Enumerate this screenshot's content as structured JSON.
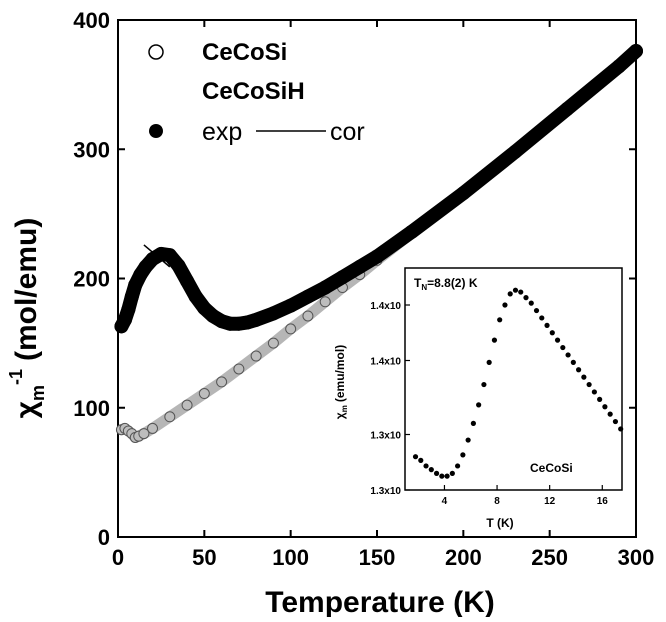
{
  "chart_data": [
    {
      "type": "scatter",
      "title": "",
      "xlabel": "Temperature (K)",
      "ylabel": "χm⁻¹ (mol/emu)",
      "ylabel_parts": {
        "symbol": "χ",
        "subscript": "m",
        "superscript": "-1",
        "unit": "(mol/emu)"
      },
      "xlim": [
        0,
        300
      ],
      "ylim": [
        0,
        400
      ],
      "xticks": [
        0,
        50,
        100,
        150,
        200,
        250,
        300
      ],
      "xtick_labels": [
        "0",
        "50",
        "100",
        "150",
        "200",
        "250",
        "300"
      ],
      "yticks": [
        0,
        100,
        200,
        300,
        400
      ],
      "ytick_labels": [
        "0",
        "100",
        "200",
        "300",
        "400"
      ],
      "grid": false,
      "legend_placement": "top-left",
      "legend": {
        "sample1": "CeCoSi",
        "sample2": "CeCoSiH",
        "exp_label": "exp",
        "cor_label": "cor"
      },
      "series": [
        {
          "name": "CeCoSi",
          "marker": "open-circle",
          "color": "#7a7a7a",
          "x": [
            2,
            4,
            6,
            8,
            10,
            12,
            15,
            20,
            30,
            40,
            50,
            60,
            70,
            80,
            90,
            100,
            110,
            120,
            130,
            140,
            150,
            170,
            200,
            230,
            260,
            290,
            300
          ],
          "y": [
            83,
            84,
            82,
            80,
            77,
            78,
            80,
            84,
            93,
            102,
            111,
            120,
            130,
            140,
            150,
            161,
            171,
            182,
            193,
            203,
            214,
            235,
            266,
            298,
            331,
            364,
            376
          ]
        },
        {
          "name": "CeCoSiH exp",
          "marker": "filled-circle",
          "color": "#000000",
          "x": [
            2,
            4,
            6,
            8,
            10,
            13,
            16,
            20,
            25,
            30,
            35,
            40,
            45,
            50,
            55,
            60,
            65,
            70,
            75,
            80,
            90,
            100,
            110,
            120,
            130,
            140,
            150,
            170,
            200,
            230,
            260,
            290,
            300
          ],
          "y": [
            163,
            168,
            176,
            186,
            195,
            203,
            209,
            215,
            219,
            218,
            210,
            198,
            186,
            177,
            171,
            167,
            165,
            165,
            166,
            168,
            173,
            179,
            186,
            193,
            201,
            209,
            217,
            236,
            266,
            298,
            331,
            364,
            376
          ]
        },
        {
          "name": "CeCoSiH cor",
          "marker": "line",
          "color": "#000000",
          "x": [
            15,
            30
          ],
          "y": [
            226,
            209
          ]
        }
      ]
    },
    {
      "type": "scatter",
      "title": "",
      "xlabel": "T (K)",
      "ylabel": "χm (emu/mol)",
      "ylabel_parts": {
        "symbol": "χ",
        "subscript": "m",
        "unit": "(emu/mol)"
      },
      "annotation": "TN=8.8(2) K",
      "annotation_parts": {
        "main": "T",
        "subscript": "N",
        "rest": "=8.8(2) K"
      },
      "sample_label": "CeCoSi",
      "xlim": [
        1,
        17.5
      ],
      "ylim": [
        1.3,
        1.42
      ],
      "xticks": [
        4,
        8,
        12,
        16
      ],
      "xtick_labels": [
        "4",
        "8",
        "12",
        "16"
      ],
      "yticks": [
        1.3,
        1.33,
        1.37,
        1.4
      ],
      "ytick_labels": [
        "1.3x10",
        "1.3x10",
        "1.4x10",
        "1.4x10"
      ],
      "grid": false,
      "series": [
        {
          "name": "CeCoSi",
          "marker": "filled-circle",
          "color": "#000000",
          "x": [
            1.8,
            2.2,
            2.6,
            3.0,
            3.4,
            3.8,
            4.2,
            4.6,
            5.0,
            5.4,
            5.8,
            6.2,
            6.6,
            7.0,
            7.4,
            7.8,
            8.2,
            8.6,
            9.0,
            9.4,
            9.8,
            10.2,
            10.6,
            11.0,
            11.4,
            11.8,
            12.2,
            12.6,
            13.0,
            13.4,
            13.8,
            14.2,
            14.6,
            15.0,
            15.4,
            15.8,
            16.2,
            16.6,
            17.0,
            17.4
          ],
          "y": [
            1.318,
            1.316,
            1.313,
            1.311,
            1.309,
            1.3075,
            1.3075,
            1.309,
            1.313,
            1.319,
            1.327,
            1.336,
            1.346,
            1.357,
            1.369,
            1.381,
            1.392,
            1.4,
            1.406,
            1.408,
            1.407,
            1.404,
            1.401,
            1.397,
            1.393,
            1.389,
            1.385,
            1.381,
            1.377,
            1.373,
            1.369,
            1.365,
            1.361,
            1.357,
            1.353,
            1.349,
            1.345,
            1.341,
            1.337,
            1.333
          ]
        }
      ]
    }
  ]
}
